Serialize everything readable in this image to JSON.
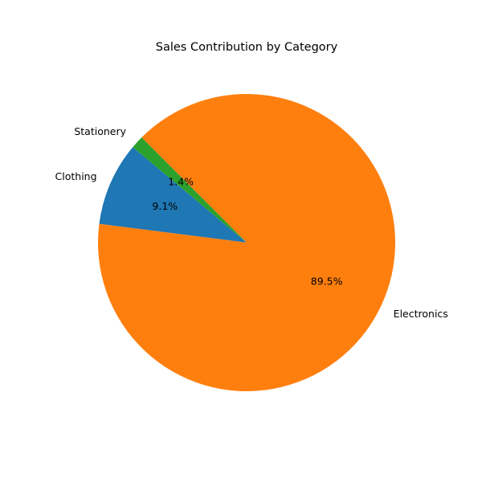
{
  "chart_data": {
    "type": "pie",
    "title": "Sales Contribution by Category",
    "categories": [
      "Clothing",
      "Electronics",
      "Stationery"
    ],
    "values": [
      9.1,
      89.5,
      1.4
    ],
    "percent_labels": [
      "9.1%",
      "89.5%",
      "1.4%"
    ],
    "colors": [
      "#1f77b4",
      "#ff7f0e",
      "#2ca02c"
    ],
    "start_angle_deg": 140,
    "direction": "counterclockwise",
    "legend": "none"
  }
}
